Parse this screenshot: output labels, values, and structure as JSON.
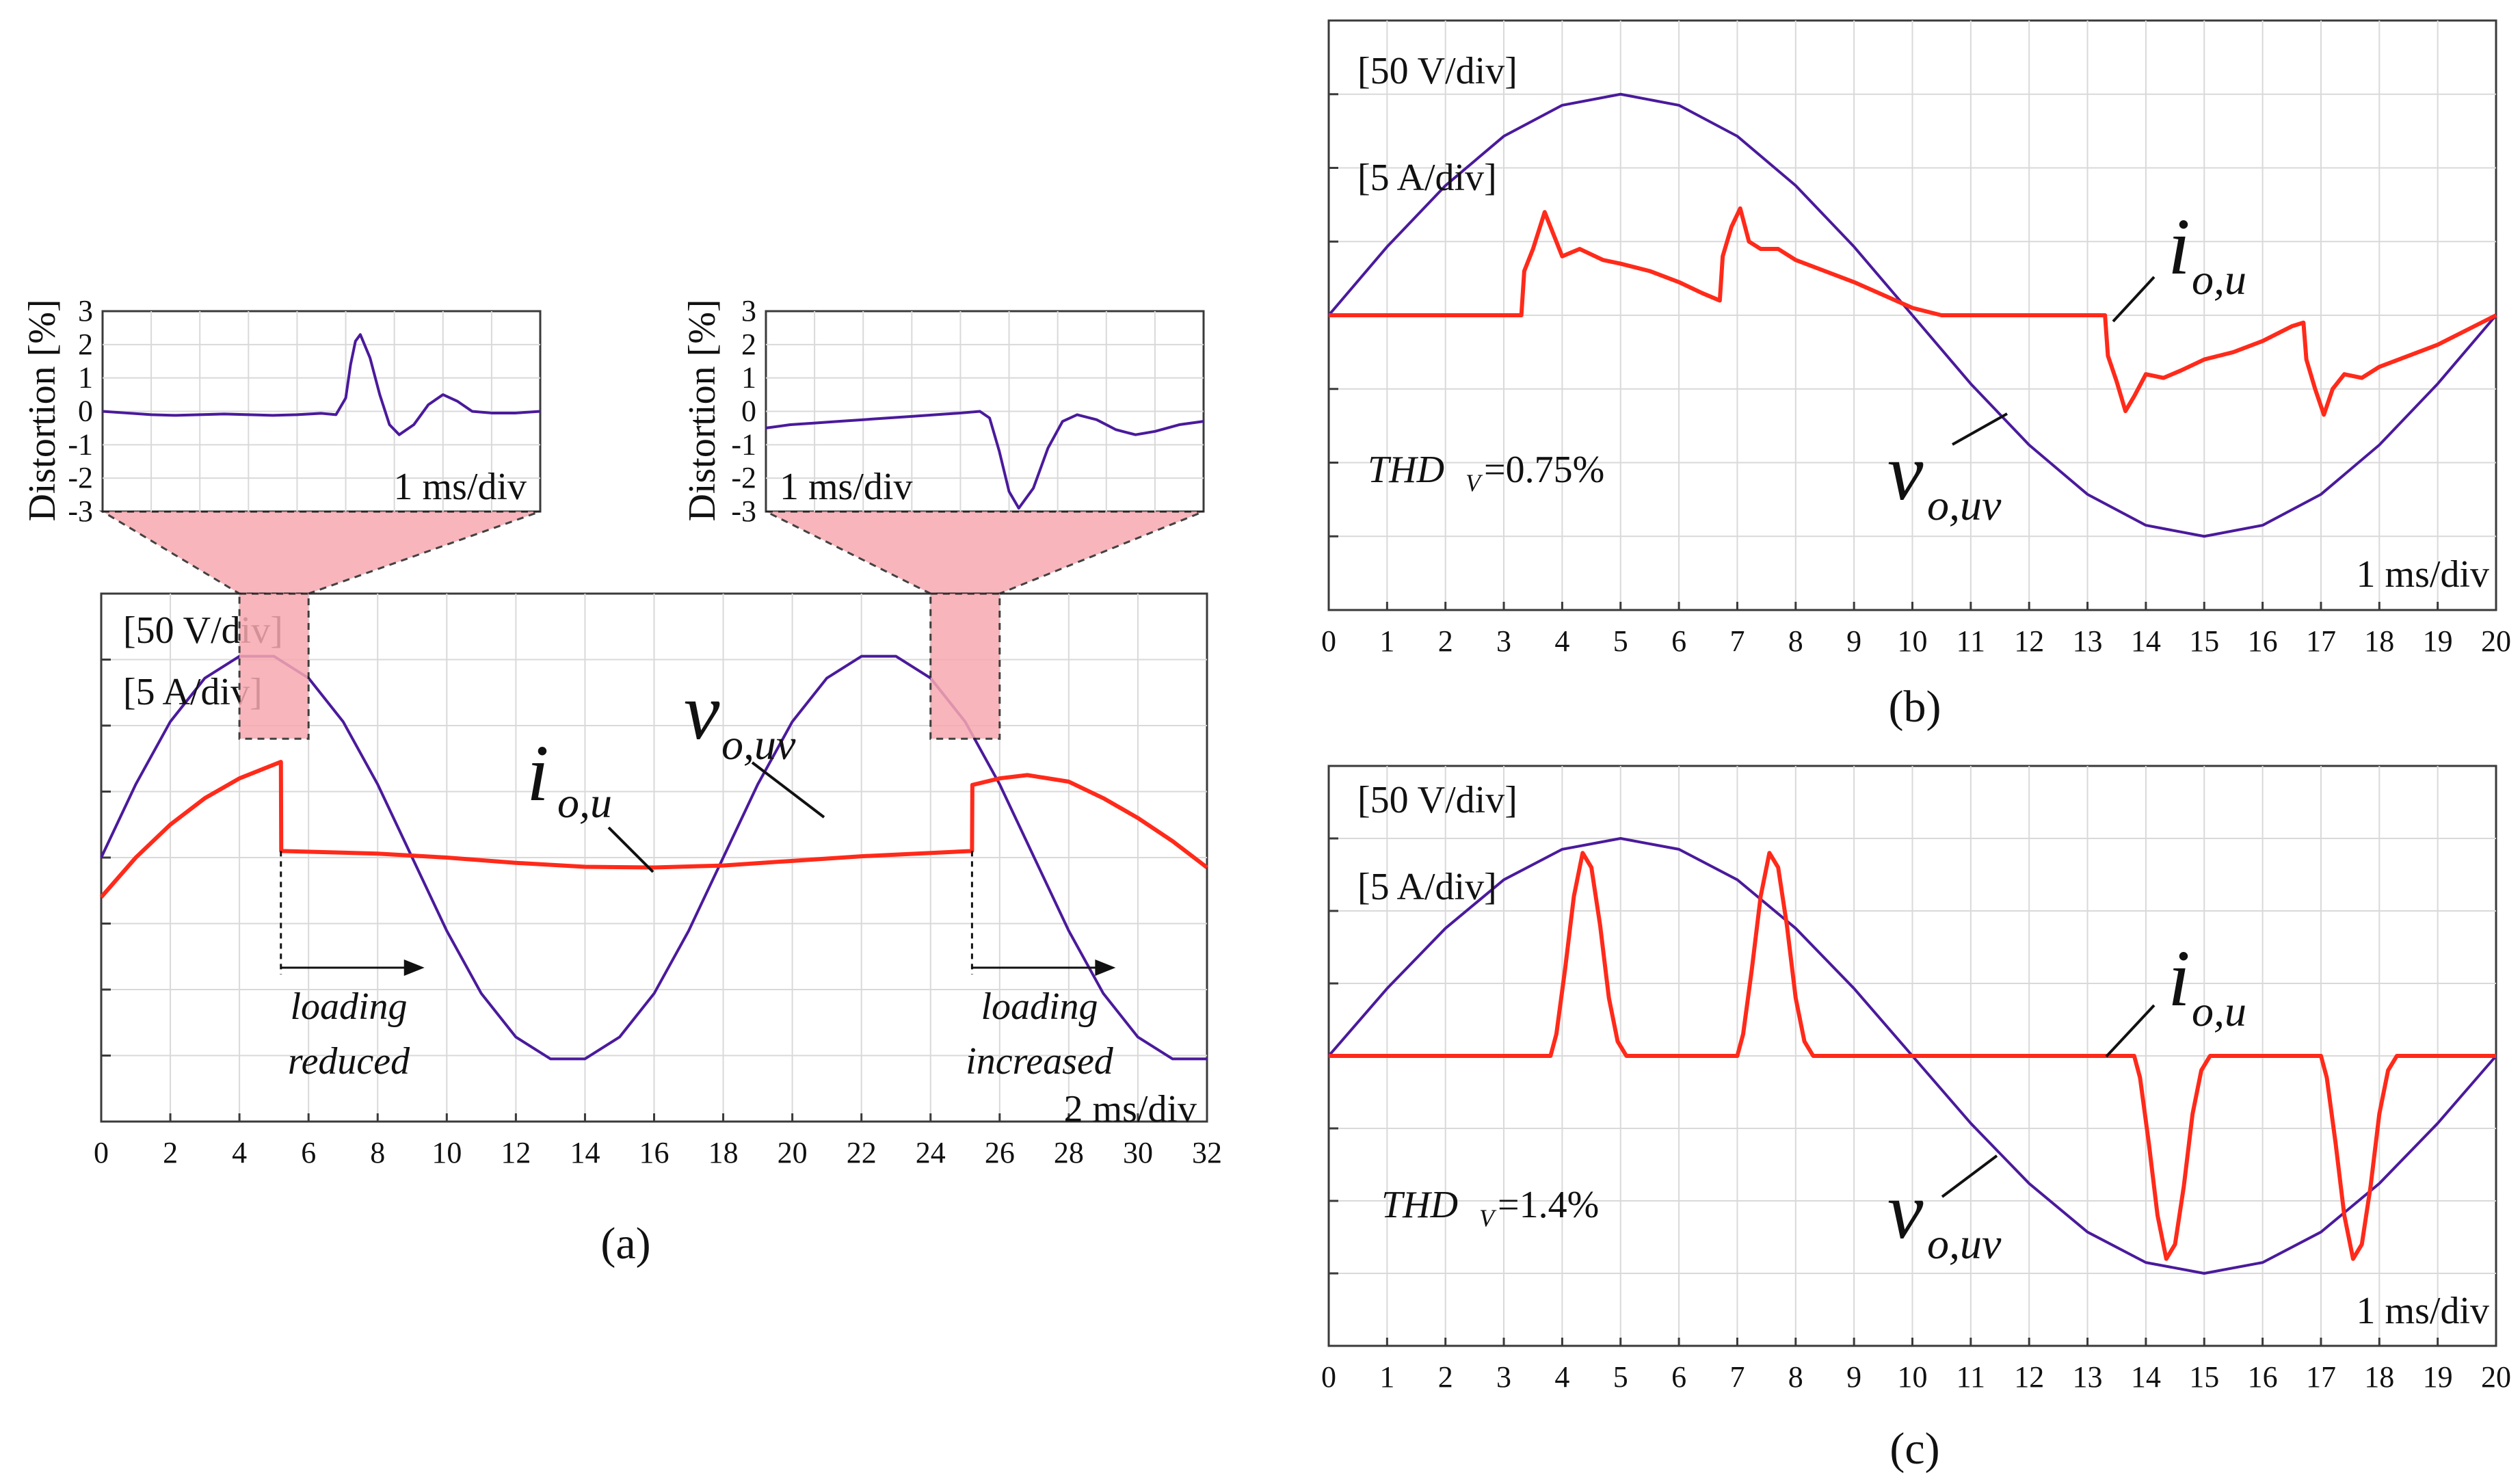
{
  "colors": {
    "voltage": "#4a1a9c",
    "current": "#ff2a1a",
    "zoom_fill": "#f7a9b0",
    "grid": "#d9d9d9",
    "axis": "#3a3a3a"
  },
  "chart_data": [
    {
      "id": "a",
      "type": "line",
      "panel_label": "(a)",
      "title": "",
      "xlabel": "",
      "ylabel": "",
      "xlim": [
        0,
        32
      ],
      "ylim": [
        -4,
        4
      ],
      "x_ticks": [
        "0",
        "2",
        "4",
        "6",
        "8",
        "10",
        "12",
        "14",
        "16",
        "18",
        "20",
        "22",
        "24",
        "26",
        "28",
        "30",
        "32"
      ],
      "grid": true,
      "scale_labels": [
        "[50 V/div]",
        "[5 A/div]"
      ],
      "time_scale": "2 ms/div",
      "series": [
        {
          "name": "v_o,uv",
          "color": "#4a1a9c",
          "x": [
            0,
            1,
            2,
            3,
            4,
            5,
            6,
            7,
            8,
            9,
            10,
            11,
            12,
            13,
            14,
            15,
            16,
            17,
            18,
            19,
            20,
            21,
            22,
            23,
            24,
            25,
            26,
            27,
            28,
            29,
            30,
            31,
            32
          ],
          "y": [
            0,
            1.11,
            2.06,
            2.72,
            3.05,
            3.05,
            2.72,
            2.06,
            1.11,
            0,
            -1.11,
            -2.06,
            -2.72,
            -3.05,
            -3.05,
            -2.72,
            -2.06,
            -1.11,
            0,
            1.11,
            2.06,
            2.72,
            3.05,
            3.05,
            2.72,
            2.06,
            1.11,
            0,
            -1.11,
            -2.06,
            -2.72,
            -3.05,
            -3.05
          ]
        },
        {
          "name": "i_o,u",
          "color": "#ff2a1a",
          "x": [
            0,
            1,
            2,
            3,
            4,
            5.2,
            5.21,
            8,
            10,
            12,
            14,
            16,
            18,
            20,
            22,
            25.2,
            25.21,
            26,
            26.8,
            28,
            29,
            30,
            31,
            32
          ],
          "y": [
            -0.6,
            0,
            0.5,
            0.9,
            1.2,
            1.45,
            0.1,
            0.06,
            0,
            -0.08,
            -0.14,
            -0.15,
            -0.12,
            -0.05,
            0.02,
            0.1,
            1.1,
            1.2,
            1.25,
            1.15,
            0.9,
            0.6,
            0.25,
            -0.15
          ]
        }
      ],
      "annotations": [
        {
          "text": "loading reduced",
          "line1": "loading",
          "line2": "reduced",
          "at_x": 5.2
        },
        {
          "text": "loading increased",
          "line1": "loading",
          "line2": "increased",
          "at_x": 25.2
        }
      ],
      "zoom_windows": [
        [
          4,
          6
        ],
        [
          24,
          26
        ]
      ],
      "insets": [
        {
          "id": "a-inset-1",
          "type": "line",
          "ylabel": "Distortion [%]",
          "yticks": [
            "3",
            "2",
            "1",
            "0",
            "-1",
            "-2",
            "-3"
          ],
          "ylim": [
            -3,
            3
          ],
          "time_scale": "1 ms/div",
          "series": {
            "name": "distortion",
            "x": [
              0,
              0.5,
              1,
              1.5,
              2,
              2.5,
              3,
              3.5,
              4,
              4.5,
              4.8,
              5,
              5.1,
              5.2,
              5.3,
              5.5,
              5.7,
              5.9,
              6.1,
              6.4,
              6.7,
              7,
              7.3,
              7.6,
              8,
              8.5,
              9
            ],
            "y": [
              0,
              -0.05,
              -0.1,
              -0.12,
              -0.1,
              -0.08,
              -0.1,
              -0.12,
              -0.1,
              -0.06,
              -0.1,
              0.4,
              1.4,
              2.1,
              2.3,
              1.6,
              0.5,
              -0.4,
              -0.7,
              -0.4,
              0.2,
              0.5,
              0.3,
              0,
              -0.05,
              -0.05,
              0
            ]
          }
        },
        {
          "id": "a-inset-2",
          "type": "line",
          "ylabel": "Distortion [%]",
          "yticks": [
            "3",
            "2",
            "1",
            "0",
            "-1",
            "-2",
            "-3"
          ],
          "ylim": [
            -3,
            3
          ],
          "time_scale": "1 ms/div",
          "series": {
            "name": "distortion",
            "x": [
              0,
              0.5,
              1,
              1.5,
              2,
              2.5,
              3,
              3.5,
              4,
              4.4,
              4.6,
              4.8,
              5,
              5.2,
              5.5,
              5.8,
              6.1,
              6.4,
              6.8,
              7.2,
              7.6,
              8,
              8.5,
              9
            ],
            "y": [
              -0.5,
              -0.4,
              -0.35,
              -0.3,
              -0.25,
              -0.2,
              -0.15,
              -0.1,
              -0.05,
              0,
              -0.2,
              -1.2,
              -2.4,
              -2.9,
              -2.3,
              -1.1,
              -0.3,
              -0.1,
              -0.25,
              -0.55,
              -0.7,
              -0.6,
              -0.4,
              -0.3
            ]
          }
        }
      ]
    },
    {
      "id": "b",
      "type": "line",
      "panel_label": "(b)",
      "title": "",
      "xlabel": "",
      "ylabel": "",
      "xlim": [
        0,
        20
      ],
      "ylim": [
        -4,
        4
      ],
      "x_ticks": [
        "0",
        "1",
        "2",
        "3",
        "4",
        "5",
        "6",
        "7",
        "8",
        "9",
        "10",
        "11",
        "12",
        "13",
        "14",
        "15",
        "16",
        "17",
        "18",
        "19",
        "20"
      ],
      "grid": true,
      "scale_labels": [
        "[50 V/div]",
        "[5 A/div]"
      ],
      "time_scale": "1 ms/div",
      "thd_text": "THD",
      "thd_sub": "V",
      "thd_value": "=0.75%",
      "series": [
        {
          "name": "v_o,uv",
          "color": "#4a1a9c",
          "x": [
            0,
            1,
            2,
            3,
            4,
            5,
            6,
            7,
            8,
            9,
            10,
            11,
            12,
            13,
            14,
            15,
            16,
            17,
            18,
            19,
            20
          ],
          "y": [
            0,
            0.93,
            1.76,
            2.43,
            2.85,
            3.0,
            2.85,
            2.43,
            1.76,
            0.93,
            0,
            -0.93,
            -1.76,
            -2.43,
            -2.85,
            -3.0,
            -2.85,
            -2.43,
            -1.76,
            -0.93,
            0
          ]
        },
        {
          "name": "i_o,u",
          "color": "#ff2a1a",
          "x": [
            0,
            3.3,
            3.35,
            3.5,
            3.7,
            3.85,
            4.0,
            4.3,
            4.7,
            5.0,
            5.5,
            6.0,
            6.4,
            6.7,
            6.75,
            6.9,
            7.05,
            7.2,
            7.4,
            7.7,
            8,
            9,
            10,
            10.5,
            13.3,
            13.35,
            13.5,
            13.65,
            13.8,
            14.0,
            14.3,
            14.6,
            15.0,
            15.5,
            16.0,
            16.5,
            16.7,
            16.75,
            16.9,
            17.05,
            17.2,
            17.4,
            17.7,
            18,
            19,
            20
          ],
          "y": [
            0,
            0,
            0.6,
            0.9,
            1.4,
            1.1,
            0.8,
            0.9,
            0.75,
            0.7,
            0.6,
            0.45,
            0.3,
            0.2,
            0.8,
            1.2,
            1.45,
            1.0,
            0.9,
            0.9,
            0.75,
            0.45,
            0.1,
            0,
            0,
            -0.55,
            -0.9,
            -1.3,
            -1.1,
            -0.8,
            -0.85,
            -0.75,
            -0.6,
            -0.5,
            -0.35,
            -0.15,
            -0.1,
            -0.6,
            -1.0,
            -1.35,
            -1.0,
            -0.8,
            -0.85,
            -0.7,
            -0.4,
            0
          ]
        }
      ],
      "labels": {
        "current": {
          "main": "i",
          "sub": "o,u"
        },
        "voltage": {
          "main": "v",
          "sub": "o,uv"
        }
      }
    },
    {
      "id": "c",
      "type": "line",
      "panel_label": "(c)",
      "title": "",
      "xlabel": "",
      "ylabel": "",
      "xlim": [
        0,
        20
      ],
      "ylim": [
        -4,
        4
      ],
      "x_ticks": [
        "0",
        "1",
        "2",
        "3",
        "4",
        "5",
        "6",
        "7",
        "8",
        "9",
        "10",
        "11",
        "12",
        "13",
        "14",
        "15",
        "16",
        "17",
        "18",
        "19",
        "20"
      ],
      "grid": true,
      "scale_labels": [
        "[50 V/div]",
        "[5 A/div]"
      ],
      "time_scale": "1 ms/div",
      "thd_text": "THD",
      "thd_sub": "V",
      "thd_value": "=1.4%",
      "series": [
        {
          "name": "v_o,uv",
          "color": "#4a1a9c",
          "x": [
            0,
            1,
            2,
            3,
            4,
            5,
            6,
            7,
            8,
            9,
            10,
            11,
            12,
            13,
            14,
            15,
            16,
            17,
            18,
            19,
            20
          ],
          "y": [
            0,
            0.93,
            1.76,
            2.43,
            2.85,
            3.0,
            2.85,
            2.43,
            1.76,
            0.93,
            0,
            -0.93,
            -1.76,
            -2.43,
            -2.85,
            -3.0,
            -2.85,
            -2.43,
            -1.76,
            -0.93,
            0
          ]
        },
        {
          "name": "i_o,u",
          "color": "#ff2a1a",
          "x": [
            0,
            3.8,
            3.9,
            4.05,
            4.2,
            4.35,
            4.5,
            4.65,
            4.8,
            4.95,
            5.1,
            5.2,
            7.0,
            7.1,
            7.25,
            7.4,
            7.55,
            7.7,
            7.85,
            8.0,
            8.15,
            8.3,
            8.4,
            13.8,
            13.9,
            14.05,
            14.2,
            14.35,
            14.5,
            14.65,
            14.8,
            14.95,
            15.1,
            15.2,
            17.0,
            17.1,
            17.25,
            17.4,
            17.55,
            17.7,
            17.85,
            18.0,
            18.15,
            18.3,
            18.4,
            20
          ],
          "y": [
            0,
            0,
            0.3,
            1.2,
            2.2,
            2.8,
            2.6,
            1.8,
            0.8,
            0.2,
            0,
            0,
            0,
            0.3,
            1.2,
            2.2,
            2.8,
            2.6,
            1.8,
            0.8,
            0.2,
            0,
            0,
            0,
            -0.3,
            -1.2,
            -2.2,
            -2.8,
            -2.6,
            -1.8,
            -0.8,
            -0.2,
            0,
            0,
            0,
            -0.3,
            -1.2,
            -2.2,
            -2.8,
            -2.6,
            -1.8,
            -0.8,
            -0.2,
            0,
            0,
            0
          ]
        }
      ],
      "labels": {
        "current": {
          "main": "i",
          "sub": "o,u"
        },
        "voltage": {
          "main": "v",
          "sub": "o,uv"
        }
      }
    }
  ]
}
